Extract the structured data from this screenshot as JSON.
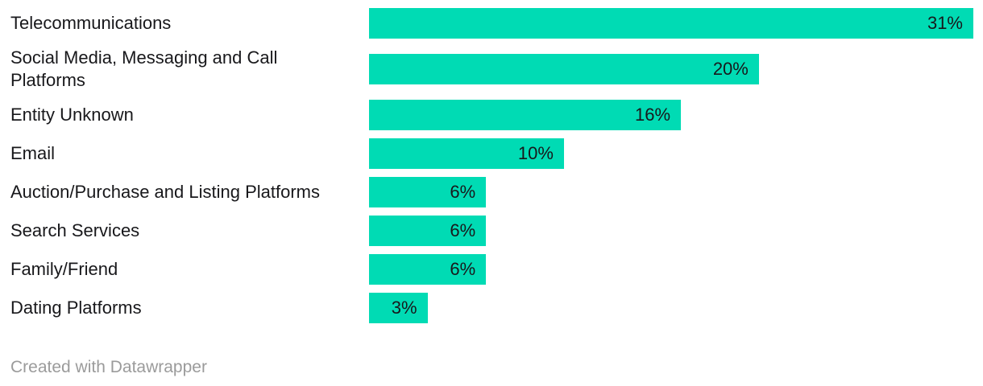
{
  "chart_data": {
    "type": "bar",
    "orientation": "horizontal",
    "title": "",
    "categories": [
      "Telecommunications",
      "Social Media, Messaging and Call Platforms",
      "Entity Unknown",
      "Email",
      "Auction/Purchase and Listing Platforms",
      "Search Services",
      "Family/Friend",
      "Dating Platforms"
    ],
    "values": [
      31,
      20,
      16,
      10,
      6,
      6,
      6,
      3
    ],
    "value_labels": [
      "31%",
      "20%",
      "16%",
      "10%",
      "6%",
      "6%",
      "6%",
      "3%"
    ],
    "xlim": [
      0,
      31
    ],
    "grid": false,
    "legend": "none",
    "bar_color": "#00dbb4",
    "label_color": "#18181b",
    "value_label_position": "inside-end"
  },
  "footer": {
    "credit": "Created with Datawrapper"
  }
}
